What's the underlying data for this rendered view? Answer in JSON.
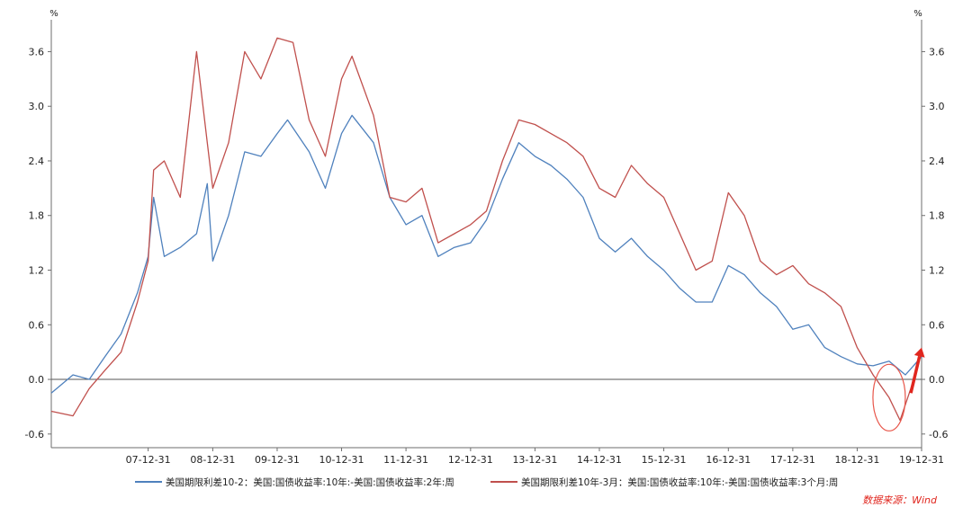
{
  "chart_data": {
    "type": "line",
    "title": "",
    "xlabel": "",
    "ylabel_left": "%",
    "ylabel_right": "%",
    "ylim": [
      -0.75,
      3.95
    ],
    "xlim": [
      "2006-06-30",
      "2019-12-31"
    ],
    "y_ticks": [
      "-0.6",
      "0.0",
      "0.6",
      "1.2",
      "1.8",
      "2.4",
      "3.0",
      "3.6"
    ],
    "x_ticks": [
      "07-12-31",
      "08-12-31",
      "09-12-31",
      "10-12-31",
      "11-12-31",
      "12-12-31",
      "13-12-31",
      "14-12-31",
      "15-12-31",
      "16-12-31",
      "17-12-31",
      "18-12-31",
      "19-12-31"
    ],
    "grid": false,
    "legend_position": "bottom",
    "series": [
      {
        "name": "美国期限利差10-2：美国:国债收益率:10年:-美国:国债收益率:2年:周",
        "color": "#4f81bd",
        "points": [
          [
            "2006-06-30",
            -0.15
          ],
          [
            "2006-10-31",
            0.05
          ],
          [
            "2007-01-31",
            0.0
          ],
          [
            "2007-04-30",
            0.25
          ],
          [
            "2007-07-31",
            0.5
          ],
          [
            "2007-10-31",
            0.95
          ],
          [
            "2007-12-31",
            1.35
          ],
          [
            "2008-01-31",
            2.0
          ],
          [
            "2008-03-31",
            1.35
          ],
          [
            "2008-06-30",
            1.45
          ],
          [
            "2008-09-30",
            1.6
          ],
          [
            "2008-11-30",
            2.15
          ],
          [
            "2008-12-31",
            1.3
          ],
          [
            "2009-03-31",
            1.8
          ],
          [
            "2009-06-30",
            2.5
          ],
          [
            "2009-09-30",
            2.45
          ],
          [
            "2009-12-31",
            2.7
          ],
          [
            "2010-02-28",
            2.85
          ],
          [
            "2010-06-30",
            2.5
          ],
          [
            "2010-09-30",
            2.1
          ],
          [
            "2010-12-31",
            2.7
          ],
          [
            "2011-02-28",
            2.9
          ],
          [
            "2011-06-30",
            2.6
          ],
          [
            "2011-09-30",
            2.0
          ],
          [
            "2011-12-31",
            1.7
          ],
          [
            "2012-03-31",
            1.8
          ],
          [
            "2012-06-30",
            1.35
          ],
          [
            "2012-09-30",
            1.45
          ],
          [
            "2012-12-31",
            1.5
          ],
          [
            "2013-03-31",
            1.75
          ],
          [
            "2013-06-30",
            2.2
          ],
          [
            "2013-09-30",
            2.6
          ],
          [
            "2013-12-31",
            2.45
          ],
          [
            "2014-03-31",
            2.35
          ],
          [
            "2014-06-30",
            2.2
          ],
          [
            "2014-09-30",
            2.0
          ],
          [
            "2014-12-31",
            1.55
          ],
          [
            "2015-03-31",
            1.4
          ],
          [
            "2015-06-30",
            1.55
          ],
          [
            "2015-09-30",
            1.35
          ],
          [
            "2015-12-31",
            1.2
          ],
          [
            "2016-03-31",
            1.0
          ],
          [
            "2016-06-30",
            0.85
          ],
          [
            "2016-09-30",
            0.85
          ],
          [
            "2016-12-31",
            1.25
          ],
          [
            "2017-03-31",
            1.15
          ],
          [
            "2017-06-30",
            0.95
          ],
          [
            "2017-09-30",
            0.8
          ],
          [
            "2017-12-31",
            0.55
          ],
          [
            "2018-03-31",
            0.6
          ],
          [
            "2018-06-30",
            0.35
          ],
          [
            "2018-09-30",
            0.25
          ],
          [
            "2018-12-31",
            0.17
          ],
          [
            "2019-03-31",
            0.15
          ],
          [
            "2019-06-30",
            0.2
          ],
          [
            "2019-09-30",
            0.05
          ],
          [
            "2019-12-31",
            0.25
          ]
        ]
      },
      {
        "name": "美国期限利差10年-3月：美国:国债收益率:10年:-美国:国债收益率:3个月:周",
        "color": "#c0504d",
        "points": [
          [
            "2006-06-30",
            -0.35
          ],
          [
            "2006-10-31",
            -0.4
          ],
          [
            "2007-01-31",
            -0.1
          ],
          [
            "2007-04-30",
            0.1
          ],
          [
            "2007-07-31",
            0.3
          ],
          [
            "2007-10-31",
            0.85
          ],
          [
            "2007-12-31",
            1.3
          ],
          [
            "2008-01-31",
            2.3
          ],
          [
            "2008-03-31",
            2.4
          ],
          [
            "2008-06-30",
            2.0
          ],
          [
            "2008-09-30",
            3.6
          ],
          [
            "2008-11-30",
            2.6
          ],
          [
            "2008-12-31",
            2.1
          ],
          [
            "2009-03-31",
            2.6
          ],
          [
            "2009-06-30",
            3.6
          ],
          [
            "2009-09-30",
            3.3
          ],
          [
            "2009-12-31",
            3.75
          ],
          [
            "2010-03-31",
            3.7
          ],
          [
            "2010-06-30",
            2.85
          ],
          [
            "2010-09-30",
            2.45
          ],
          [
            "2010-12-31",
            3.3
          ],
          [
            "2011-02-28",
            3.55
          ],
          [
            "2011-06-30",
            2.9
          ],
          [
            "2011-09-30",
            2.0
          ],
          [
            "2011-12-31",
            1.95
          ],
          [
            "2012-03-31",
            2.1
          ],
          [
            "2012-06-30",
            1.5
          ],
          [
            "2012-09-30",
            1.6
          ],
          [
            "2012-12-31",
            1.7
          ],
          [
            "2013-03-31",
            1.85
          ],
          [
            "2013-06-30",
            2.4
          ],
          [
            "2013-09-30",
            2.85
          ],
          [
            "2013-12-31",
            2.8
          ],
          [
            "2014-03-31",
            2.7
          ],
          [
            "2014-06-30",
            2.6
          ],
          [
            "2014-09-30",
            2.45
          ],
          [
            "2014-12-31",
            2.1
          ],
          [
            "2015-03-31",
            2.0
          ],
          [
            "2015-06-30",
            2.35
          ],
          [
            "2015-09-30",
            2.15
          ],
          [
            "2015-12-31",
            2.0
          ],
          [
            "2016-03-31",
            1.6
          ],
          [
            "2016-06-30",
            1.2
          ],
          [
            "2016-09-30",
            1.3
          ],
          [
            "2016-12-31",
            2.05
          ],
          [
            "2017-03-31",
            1.8
          ],
          [
            "2017-06-30",
            1.3
          ],
          [
            "2017-09-30",
            1.15
          ],
          [
            "2017-12-31",
            1.25
          ],
          [
            "2018-03-31",
            1.05
          ],
          [
            "2018-06-30",
            0.95
          ],
          [
            "2018-09-30",
            0.8
          ],
          [
            "2018-12-31",
            0.35
          ],
          [
            "2019-03-31",
            0.05
          ],
          [
            "2019-06-30",
            -0.2
          ],
          [
            "2019-08-31",
            -0.45
          ],
          [
            "2019-10-31",
            -0.1
          ],
          [
            "2019-12-31",
            0.3
          ]
        ]
      }
    ],
    "annotations": [
      {
        "type": "ellipse",
        "color": "#e8564a",
        "around": [
          "2019-06-30",
          -0.2
        ]
      },
      {
        "type": "arrow",
        "color": "#e0261e",
        "from": [
          "2019-10-31",
          -0.15
        ],
        "to": [
          "2019-12-31",
          0.35
        ]
      }
    ]
  },
  "source_note": "数据来源：Wind",
  "colors": {
    "axis": "#6e6e6e",
    "zero_line": "#555555",
    "text": "#222222",
    "source_note": "#e0261e"
  }
}
